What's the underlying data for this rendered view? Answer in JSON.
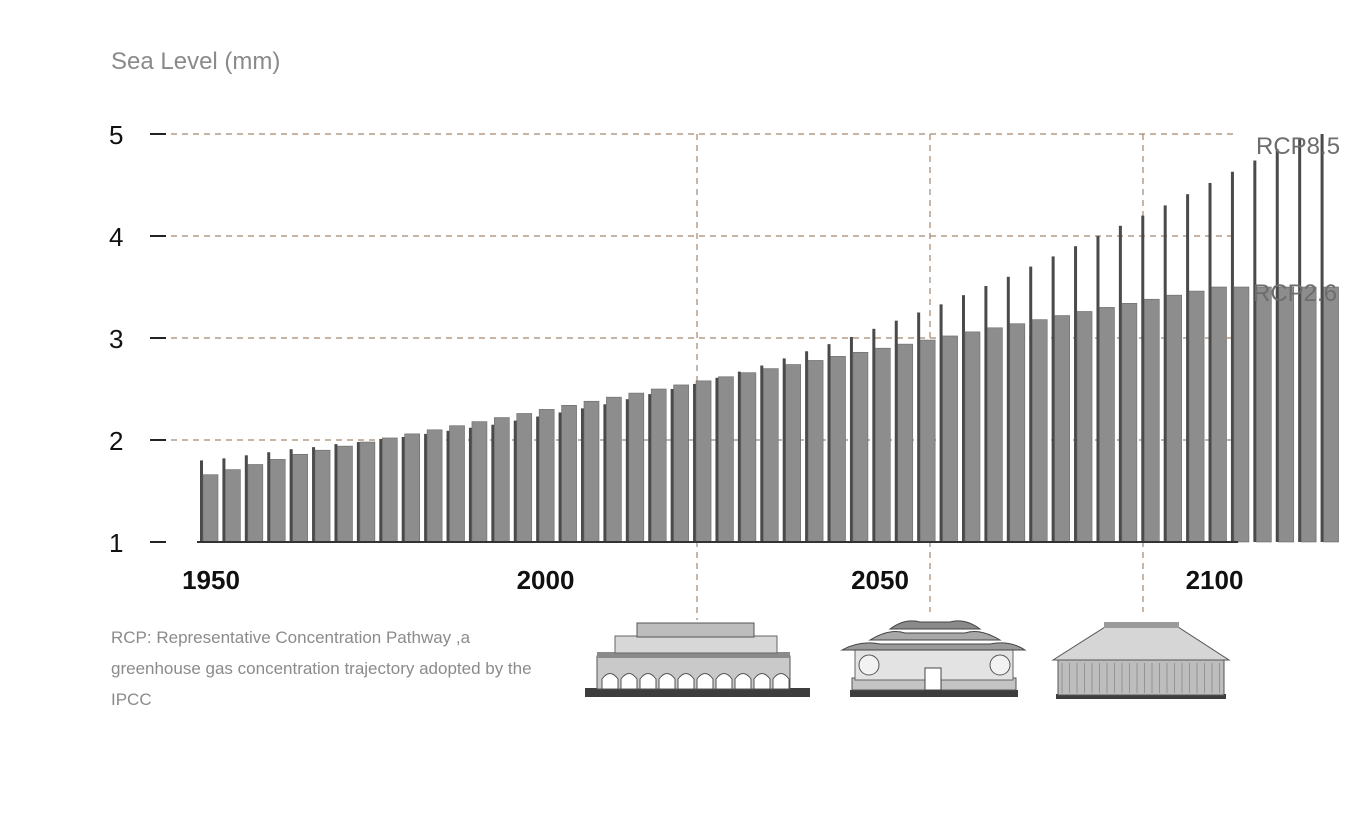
{
  "chart_data": {
    "type": "bar",
    "ylabel": "Sea Level (mm)",
    "ylim": [
      1,
      5
    ],
    "y_ticks": [
      "1",
      "2",
      "3",
      "4",
      "5"
    ],
    "x_range": [
      1950,
      2105
    ],
    "x_ticks": [
      "1950",
      "2000",
      "2050",
      "2100"
    ],
    "grid": "horizontal dashed at y ticks; vertical dashed at approx 2023, 2058, 2090",
    "series": [
      {
        "name": "RCP8.5",
        "color": "#4a4a4a",
        "x_start": 1950,
        "x_step": 3.35,
        "values": [
          1.8,
          1.82,
          1.85,
          1.88,
          1.91,
          1.93,
          1.96,
          1.98,
          2.01,
          2.03,
          2.06,
          2.09,
          2.12,
          2.15,
          2.19,
          2.23,
          2.27,
          2.31,
          2.35,
          2.4,
          2.45,
          2.5,
          2.55,
          2.61,
          2.67,
          2.73,
          2.8,
          2.87,
          2.94,
          3.01,
          3.09,
          3.17,
          3.25,
          3.33,
          3.42,
          3.51,
          3.6,
          3.7,
          3.8,
          3.9,
          4.0,
          4.1,
          4.2,
          4.3,
          4.41,
          4.52,
          4.63,
          4.74,
          4.85,
          4.95,
          5.0
        ]
      },
      {
        "name": "RCP2.6",
        "color": "#8d8d8d",
        "x_start": 1950,
        "x_step": 3.35,
        "values": [
          1.66,
          1.71,
          1.76,
          1.81,
          1.86,
          1.9,
          1.94,
          1.98,
          2.02,
          2.06,
          2.1,
          2.14,
          2.18,
          2.22,
          2.26,
          2.3,
          2.34,
          2.38,
          2.42,
          2.46,
          2.5,
          2.54,
          2.58,
          2.62,
          2.66,
          2.7,
          2.74,
          2.78,
          2.82,
          2.86,
          2.9,
          2.94,
          2.98,
          3.02,
          3.06,
          3.1,
          3.14,
          3.18,
          3.22,
          3.26,
          3.3,
          3.34,
          3.38,
          3.42,
          3.46,
          3.5,
          3.5,
          3.5,
          3.5,
          3.5,
          3.5
        ]
      }
    ]
  },
  "note": "RCP: Representative Concentration Pathway ,a greenhouse gas concentration  trajectory adopted by the IPCC",
  "buildings": [
    "station-building",
    "temple-building",
    "hall-building"
  ]
}
